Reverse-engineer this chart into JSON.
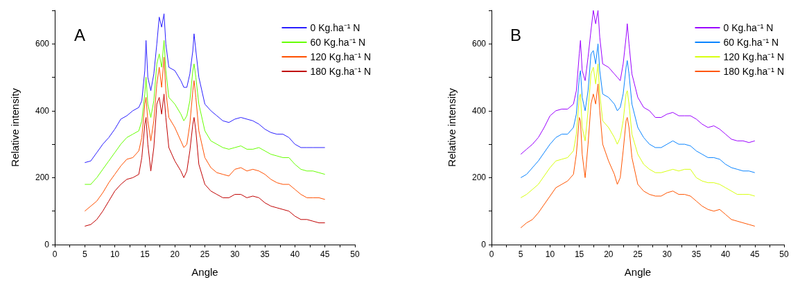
{
  "chart_data": [
    {
      "type": "line",
      "annotations": [
        "A"
      ],
      "xlabel": "Angle",
      "ylabel": "Relative intensity",
      "legend": "top right",
      "grid": false,
      "xlim": [
        0,
        50
      ],
      "xticks": [
        0,
        {
          "value": 2.5,
          "label": null
        },
        5,
        {
          "value": 7.5,
          "label": null
        },
        10,
        {
          "value": 12.5,
          "label": null
        },
        15,
        {
          "value": 17.5,
          "label": null
        },
        20,
        {
          "value": 22.5,
          "label": null
        },
        25,
        {
          "value": 27.5,
          "label": null
        },
        30,
        {
          "value": 32.5,
          "label": null
        },
        35,
        {
          "value": 37.5,
          "label": null
        },
        40,
        {
          "value": 42.5,
          "label": null
        },
        45,
        {
          "value": 47.5,
          "label": null
        },
        50
      ],
      "ylim": [
        0,
        700
      ],
      "yticks": [
        0,
        {
          "value": 100,
          "label": null
        },
        200,
        {
          "value": 300,
          "label": null
        },
        400,
        {
          "value": 500,
          "label": null
        },
        600,
        {
          "value": 700,
          "label": null
        }
      ],
      "x": [
        5,
        6,
        7,
        8,
        9,
        10,
        11,
        12,
        13,
        14,
        14.5,
        15,
        15.2,
        15.5,
        16,
        16.5,
        17,
        17.4,
        17.8,
        18.2,
        18.5,
        19,
        20,
        21,
        21.5,
        22,
        22.5,
        23,
        23.2,
        23.5,
        24,
        25,
        26,
        27,
        28,
        29,
        30,
        31,
        32,
        33,
        34,
        35,
        36,
        37,
        38,
        39,
        40,
        41,
        42,
        43,
        44,
        45
      ],
      "series": [
        {
          "name": "0 Kg.ha⁻¹ N",
          "color": "#2a1fff",
          "values": [
            245,
            250,
            275,
            300,
            320,
            345,
            375,
            385,
            400,
            410,
            430,
            520,
            610,
            500,
            460,
            510,
            600,
            680,
            650,
            690,
            600,
            530,
            520,
            490,
            470,
            470,
            510,
            580,
            630,
            580,
            500,
            420,
            400,
            385,
            370,
            365,
            375,
            380,
            375,
            370,
            360,
            345,
            335,
            330,
            330,
            320,
            300,
            290,
            290,
            290,
            290,
            290
          ]
        },
        {
          "name": "60 Kg.ha⁻¹ N",
          "color": "#66ff00",
          "values": [
            180,
            180,
            200,
            225,
            250,
            275,
            300,
            320,
            330,
            340,
            370,
            450,
            500,
            420,
            380,
            430,
            540,
            570,
            530,
            610,
            520,
            440,
            420,
            390,
            370,
            385,
            430,
            520,
            540,
            500,
            420,
            340,
            310,
            300,
            290,
            285,
            290,
            295,
            285,
            285,
            290,
            280,
            270,
            265,
            260,
            260,
            240,
            225,
            220,
            220,
            215,
            210
          ]
        },
        {
          "name": "120 Kg.ha⁻¹ N",
          "color": "#ff5000",
          "values": [
            100,
            115,
            130,
            155,
            185,
            210,
            235,
            255,
            260,
            280,
            320,
            420,
            440,
            370,
            310,
            370,
            480,
            530,
            470,
            560,
            460,
            380,
            350,
            310,
            290,
            300,
            360,
            460,
            490,
            440,
            340,
            260,
            230,
            215,
            210,
            205,
            225,
            230,
            220,
            225,
            220,
            210,
            195,
            185,
            180,
            180,
            165,
            150,
            140,
            140,
            140,
            135
          ]
        },
        {
          "name": "180 Kg.ha⁻¹ N",
          "color": "#c00000",
          "values": [
            55,
            60,
            75,
            100,
            130,
            160,
            180,
            195,
            200,
            210,
            260,
            360,
            380,
            300,
            220,
            290,
            420,
            440,
            390,
            450,
            380,
            290,
            250,
            220,
            200,
            220,
            280,
            360,
            380,
            340,
            240,
            180,
            160,
            150,
            140,
            140,
            150,
            150,
            140,
            145,
            140,
            125,
            115,
            110,
            105,
            100,
            85,
            75,
            75,
            70,
            65,
            65
          ]
        }
      ]
    },
    {
      "type": "line",
      "annotations": [
        "B"
      ],
      "xlabel": "Angle",
      "ylabel": "Relative intensity",
      "legend": "top right",
      "grid": false,
      "xlim": [
        0,
        50
      ],
      "xticks": [
        0,
        {
          "value": 2.5,
          "label": null
        },
        5,
        {
          "value": 7.5,
          "label": null
        },
        10,
        {
          "value": 12.5,
          "label": null
        },
        15,
        {
          "value": 17.5,
          "label": null
        },
        20,
        {
          "value": 22.5,
          "label": null
        },
        25,
        {
          "value": 27.5,
          "label": null
        },
        30,
        {
          "value": 32.5,
          "label": null
        },
        35,
        {
          "value": 37.5,
          "label": null
        },
        40,
        {
          "value": 42.5,
          "label": null
        },
        45,
        {
          "value": 47.5,
          "label": null
        },
        50
      ],
      "ylim": [
        0,
        700
      ],
      "yticks": [
        0,
        {
          "value": 100,
          "label": null
        },
        200,
        {
          "value": 300,
          "label": null
        },
        400,
        {
          "value": 500,
          "label": null
        },
        600,
        {
          "value": 700,
          "label": null
        }
      ],
      "x": [
        5,
        6,
        7,
        8,
        9,
        10,
        11,
        12,
        13,
        14,
        14.5,
        15,
        15.2,
        15.5,
        16,
        16.5,
        17,
        17.4,
        17.8,
        18.2,
        18.5,
        19,
        20,
        21,
        21.5,
        22,
        22.5,
        23,
        23.2,
        23.5,
        24,
        25,
        26,
        27,
        28,
        29,
        30,
        31,
        32,
        33,
        34,
        35,
        36,
        37,
        38,
        39,
        40,
        41,
        42,
        43,
        44,
        45
      ],
      "series": [
        {
          "name": "0 Kg.ha⁻¹ N",
          "color": "#9b00ff",
          "values": [
            270,
            285,
            300,
            320,
            350,
            385,
            400,
            405,
            405,
            420,
            460,
            570,
            610,
            520,
            490,
            560,
            640,
            700,
            660,
            700,
            620,
            540,
            530,
            510,
            500,
            490,
            540,
            620,
            660,
            600,
            510,
            440,
            410,
            400,
            380,
            380,
            390,
            395,
            385,
            385,
            385,
            375,
            360,
            350,
            355,
            345,
            330,
            315,
            310,
            310,
            305,
            310
          ]
        },
        {
          "name": "60 Kg.ha⁻¹ N",
          "color": "#0a84ff",
          "values": [
            200,
            210,
            230,
            250,
            275,
            300,
            320,
            330,
            330,
            350,
            390,
            500,
            520,
            440,
            400,
            460,
            570,
            580,
            540,
            600,
            520,
            450,
            440,
            420,
            400,
            410,
            450,
            530,
            550,
            510,
            420,
            350,
            320,
            300,
            290,
            290,
            300,
            310,
            300,
            300,
            295,
            280,
            270,
            260,
            260,
            255,
            240,
            230,
            225,
            220,
            220,
            215
          ]
        },
        {
          "name": "120 Kg.ha⁻¹ N",
          "color": "#d8ff10",
          "values": [
            140,
            150,
            165,
            180,
            205,
            230,
            250,
            255,
            260,
            280,
            330,
            440,
            450,
            350,
            310,
            400,
            510,
            530,
            480,
            540,
            450,
            370,
            350,
            320,
            300,
            320,
            370,
            450,
            460,
            420,
            330,
            270,
            240,
            225,
            215,
            215,
            220,
            225,
            220,
            225,
            225,
            200,
            190,
            185,
            185,
            180,
            170,
            160,
            150,
            150,
            150,
            145
          ]
        },
        {
          "name": "180 Kg.ha⁻¹ N",
          "color": "#ff5500",
          "values": [
            50,
            65,
            75,
            95,
            120,
            145,
            170,
            180,
            190,
            210,
            270,
            380,
            370,
            270,
            200,
            300,
            420,
            450,
            420,
            480,
            400,
            300,
            250,
            210,
            180,
            200,
            280,
            370,
            380,
            350,
            260,
            180,
            160,
            150,
            145,
            145,
            155,
            160,
            150,
            150,
            145,
            130,
            115,
            105,
            100,
            105,
            90,
            75,
            70,
            65,
            60,
            55
          ]
        }
      ]
    }
  ]
}
